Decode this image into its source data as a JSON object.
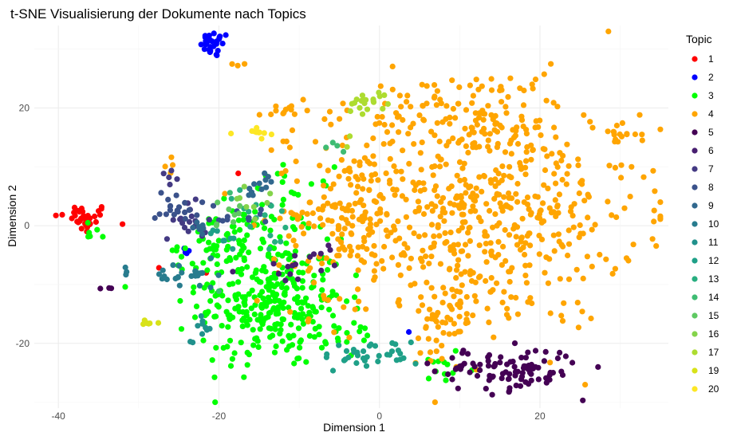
{
  "chart_data": {
    "type": "scatter",
    "title": "t-SNE Visualisierung der Dokumente nach Topics",
    "xlabel": "Dimension 1",
    "ylabel": "Dimension 2",
    "xlim": [
      -43,
      36
    ],
    "ylim": [
      -31,
      34
    ],
    "x_ticks": [
      -40,
      -20,
      0,
      20
    ],
    "y_ticks": [
      -20,
      0,
      20
    ],
    "grid": true,
    "legend": {
      "title": "Topic",
      "position": "right"
    },
    "series": [
      {
        "name": "1",
        "color": "#ff0000",
        "clusters": [
          {
            "cx": -37,
            "cy": 1.2,
            "sx": 1.8,
            "sy": 1.3,
            "n": 34
          },
          {
            "cx": -17.5,
            "cy": 9,
            "sx": 0.1,
            "sy": 0.1,
            "n": 1
          },
          {
            "cx": -21.5,
            "cy": -8,
            "sx": 0.1,
            "sy": 0.1,
            "n": 1
          },
          {
            "cx": -12.5,
            "cy": -8,
            "sx": 0.1,
            "sy": 0.1,
            "n": 1
          },
          {
            "cx": -27.5,
            "cy": -7,
            "sx": 0.1,
            "sy": 0.1,
            "n": 1
          }
        ]
      },
      {
        "name": "2",
        "color": "#0000ff",
        "clusters": [
          {
            "cx": -20.5,
            "cy": 30.8,
            "sx": 0.9,
            "sy": 1.1,
            "n": 28
          },
          {
            "cx": -24.5,
            "cy": -4.5,
            "sx": 0.6,
            "sy": 0.5,
            "n": 4
          },
          {
            "cx": 3.8,
            "cy": -18,
            "sx": 0.1,
            "sy": 0.1,
            "n": 1
          }
        ]
      },
      {
        "name": "3",
        "color": "#00ff00",
        "clusters": [
          {
            "cx": -13.5,
            "cy": -13,
            "sx": 4.5,
            "sy": 5.5,
            "n": 300
          },
          {
            "cx": -19,
            "cy": -3,
            "sx": 3,
            "sy": 3,
            "n": 70
          },
          {
            "cx": -11,
            "cy": 4,
            "sx": 2.5,
            "sy": 3,
            "n": 25
          },
          {
            "cx": -35.5,
            "cy": -1,
            "sx": 1.2,
            "sy": 0.8,
            "n": 6
          },
          {
            "cx": 8,
            "cy": -24,
            "sx": 2,
            "sy": 2.5,
            "n": 12
          },
          {
            "cx": -3,
            "cy": -19.5,
            "sx": 2,
            "sy": 1.5,
            "n": 12
          }
        ]
      },
      {
        "name": "4",
        "color": "#ffa500",
        "clusters": [
          {
            "cx": 12,
            "cy": 3,
            "sx": 10,
            "sy": 10,
            "n": 600
          },
          {
            "cx": 12,
            "cy": 20,
            "sx": 6,
            "sy": 3,
            "n": 70
          },
          {
            "cx": -4,
            "cy": 2,
            "sx": 3.5,
            "sy": 7,
            "n": 120
          },
          {
            "cx": 8,
            "cy": -16,
            "sx": 2,
            "sy": 3,
            "n": 50
          },
          {
            "cx": 30,
            "cy": 15.5,
            "sx": 1.2,
            "sy": 0.8,
            "n": 16
          },
          {
            "cx": -12,
            "cy": 20,
            "sx": 1.5,
            "sy": 1,
            "n": 12
          },
          {
            "cx": -18,
            "cy": 27.5,
            "sx": 0.6,
            "sy": 0.2,
            "n": 3
          },
          {
            "cx": -26,
            "cy": 10,
            "sx": 0.5,
            "sy": 0.7,
            "n": 4
          }
        ]
      },
      {
        "name": "5",
        "color": "#440154",
        "clusters": [
          {
            "cx": 16,
            "cy": -24.5,
            "sx": 4.5,
            "sy": 1.8,
            "n": 100
          },
          {
            "cx": -34,
            "cy": -10.5,
            "sx": 0.5,
            "sy": 0.3,
            "n": 3
          }
        ]
      },
      {
        "name": "6",
        "color": "#481f70",
        "clusters": [
          {
            "cx": -11,
            "cy": -8,
            "sx": 3,
            "sy": 2,
            "n": 12
          },
          {
            "cx": -7,
            "cy": -4.5,
            "sx": 1.5,
            "sy": 1,
            "n": 5
          }
        ]
      },
      {
        "name": "7",
        "color": "#443a83",
        "clusters": [
          {
            "cx": -23.5,
            "cy": 0.5,
            "sx": 1,
            "sy": 1.5,
            "n": 18
          },
          {
            "cx": -26,
            "cy": 8.5,
            "sx": 0.5,
            "sy": 0.7,
            "n": 5
          }
        ]
      },
      {
        "name": "8",
        "color": "#3b528b",
        "clusters": [
          {
            "cx": -25,
            "cy": 3.5,
            "sx": 1.5,
            "sy": 1.5,
            "n": 20
          },
          {
            "cx": -17,
            "cy": 1.5,
            "sx": 2,
            "sy": 1.5,
            "n": 12
          }
        ]
      },
      {
        "name": "9",
        "color": "#31688e",
        "clusters": [
          {
            "cx": -15,
            "cy": 6.5,
            "sx": 1.2,
            "sy": 1,
            "n": 12
          },
          {
            "cx": -22,
            "cy": -1,
            "sx": 1,
            "sy": 1,
            "n": 8
          }
        ]
      },
      {
        "name": "10",
        "color": "#287c8e",
        "clusters": [
          {
            "cx": -24,
            "cy": -8.5,
            "sx": 2,
            "sy": 1.2,
            "n": 25
          },
          {
            "cx": -31,
            "cy": -7,
            "sx": 0.5,
            "sy": 0.5,
            "n": 3
          }
        ]
      },
      {
        "name": "11",
        "color": "#21918c",
        "clusters": [
          {
            "cx": -22,
            "cy": -17,
            "sx": 0.6,
            "sy": 1.2,
            "n": 8
          },
          {
            "cx": -23.5,
            "cy": -20,
            "sx": 0.3,
            "sy": 0.3,
            "n": 2
          }
        ]
      },
      {
        "name": "12",
        "color": "#1fa088",
        "clusters": [
          {
            "cx": -1,
            "cy": -22,
            "sx": 3,
            "sy": 1.2,
            "n": 35
          },
          {
            "cx": -19,
            "cy": -1.5,
            "sx": 1.2,
            "sy": 1,
            "n": 8
          }
        ]
      },
      {
        "name": "13",
        "color": "#28ae80",
        "clusters": [
          {
            "cx": -16,
            "cy": 2.5,
            "sx": 1.5,
            "sy": 1.5,
            "n": 10
          },
          {
            "cx": -13,
            "cy": -2,
            "sx": 1,
            "sy": 1,
            "n": 5
          }
        ]
      },
      {
        "name": "14",
        "color": "#3fbc73",
        "clusters": [
          {
            "cx": -5.5,
            "cy": 13.5,
            "sx": 0.8,
            "sy": 0.5,
            "n": 4
          },
          {
            "cx": -19,
            "cy": 5.5,
            "sx": 0.3,
            "sy": 0.3,
            "n": 1
          },
          {
            "cx": -20,
            "cy": -11.5,
            "sx": 0.3,
            "sy": 0.3,
            "n": 1
          }
        ]
      },
      {
        "name": "15",
        "color": "#5ec962",
        "clusters": [
          {
            "cx": -19,
            "cy": 2,
            "sx": 1.2,
            "sy": 1.2,
            "n": 8
          }
        ]
      },
      {
        "name": "16",
        "color": "#84d44b",
        "clusters": [
          {
            "cx": -16.5,
            "cy": 4,
            "sx": 1.5,
            "sy": 1.5,
            "n": 8
          }
        ]
      },
      {
        "name": "17",
        "color": "#addc30",
        "clusters": [
          {
            "cx": -1.5,
            "cy": 21.5,
            "sx": 1.2,
            "sy": 1.2,
            "n": 20
          },
          {
            "cx": -4,
            "cy": 14,
            "sx": 0.5,
            "sy": 0.5,
            "n": 2
          }
        ]
      },
      {
        "name": "19",
        "color": "#d8e219",
        "clusters": [
          {
            "cx": -28.5,
            "cy": -16.8,
            "sx": 1,
            "sy": 0.4,
            "n": 6
          }
        ]
      },
      {
        "name": "20",
        "color": "#fde725",
        "clusters": [
          {
            "cx": -15.5,
            "cy": 15.8,
            "sx": 1,
            "sy": 0.6,
            "n": 10
          }
        ]
      }
    ]
  }
}
